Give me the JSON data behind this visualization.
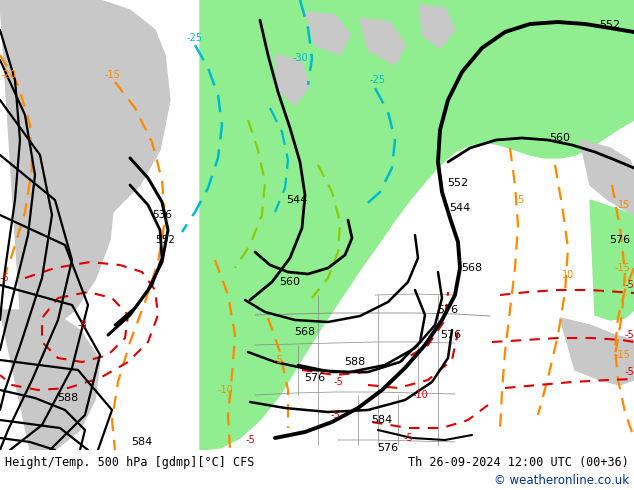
{
  "title_left": "Height/Temp. 500 hPa [gdmp][°C] CFS",
  "title_right": "Th 26-09-2024 12:00 UTC (00+36)",
  "copyright": "© weatheronline.co.uk",
  "fig_width": 6.34,
  "fig_height": 4.9,
  "dpi": 100,
  "map_bg": "#e2e2e2",
  "green_color": "#90EE90",
  "white_bg": "#ffffff",
  "copyright_color": "#003399",
  "bottom_bar_color": "#ffffff"
}
